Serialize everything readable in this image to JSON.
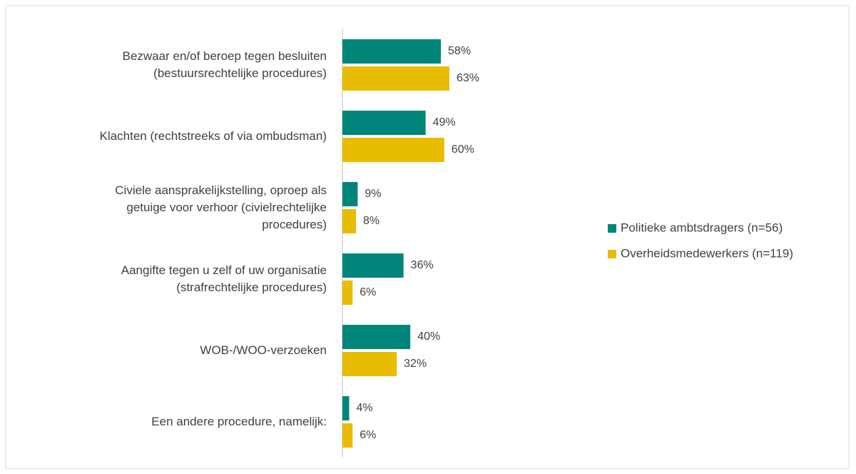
{
  "chart_data": {
    "type": "bar",
    "orientation": "horizontal",
    "categories": [
      "Bezwaar en/of beroep tegen besluiten\n(bestuursrechtelijke procedures)",
      "Klachten (rechtstreeks of via ombudsman)",
      "Civiele aansprakelijkstelling, oproep als\ngetuige voor verhoor (civielrechtelijke\nprocedures)",
      "Aangifte tegen u zelf of uw organisatie\n(strafrechtelijke procedures)",
      "WOB-/WOO-verzoeken",
      "Een andere procedure, namelijk:"
    ],
    "series": [
      {
        "name": "Politieke ambtsdragers (n=56)",
        "color": "#00857a",
        "values": [
          58,
          49,
          9,
          36,
          40,
          4
        ],
        "value_labels": [
          "58%",
          "49%",
          "9%",
          "36%",
          "40%",
          "4%"
        ]
      },
      {
        "name": "Overheidsmedewerkers (n=119)",
        "color": "#e8bc00",
        "values": [
          63,
          60,
          8,
          6,
          32,
          6
        ],
        "value_labels": [
          "63%",
          "60%",
          "8%",
          "6%",
          "32%",
          "6%"
        ]
      }
    ],
    "xlim": [
      0,
      100
    ],
    "legend": "right"
  }
}
